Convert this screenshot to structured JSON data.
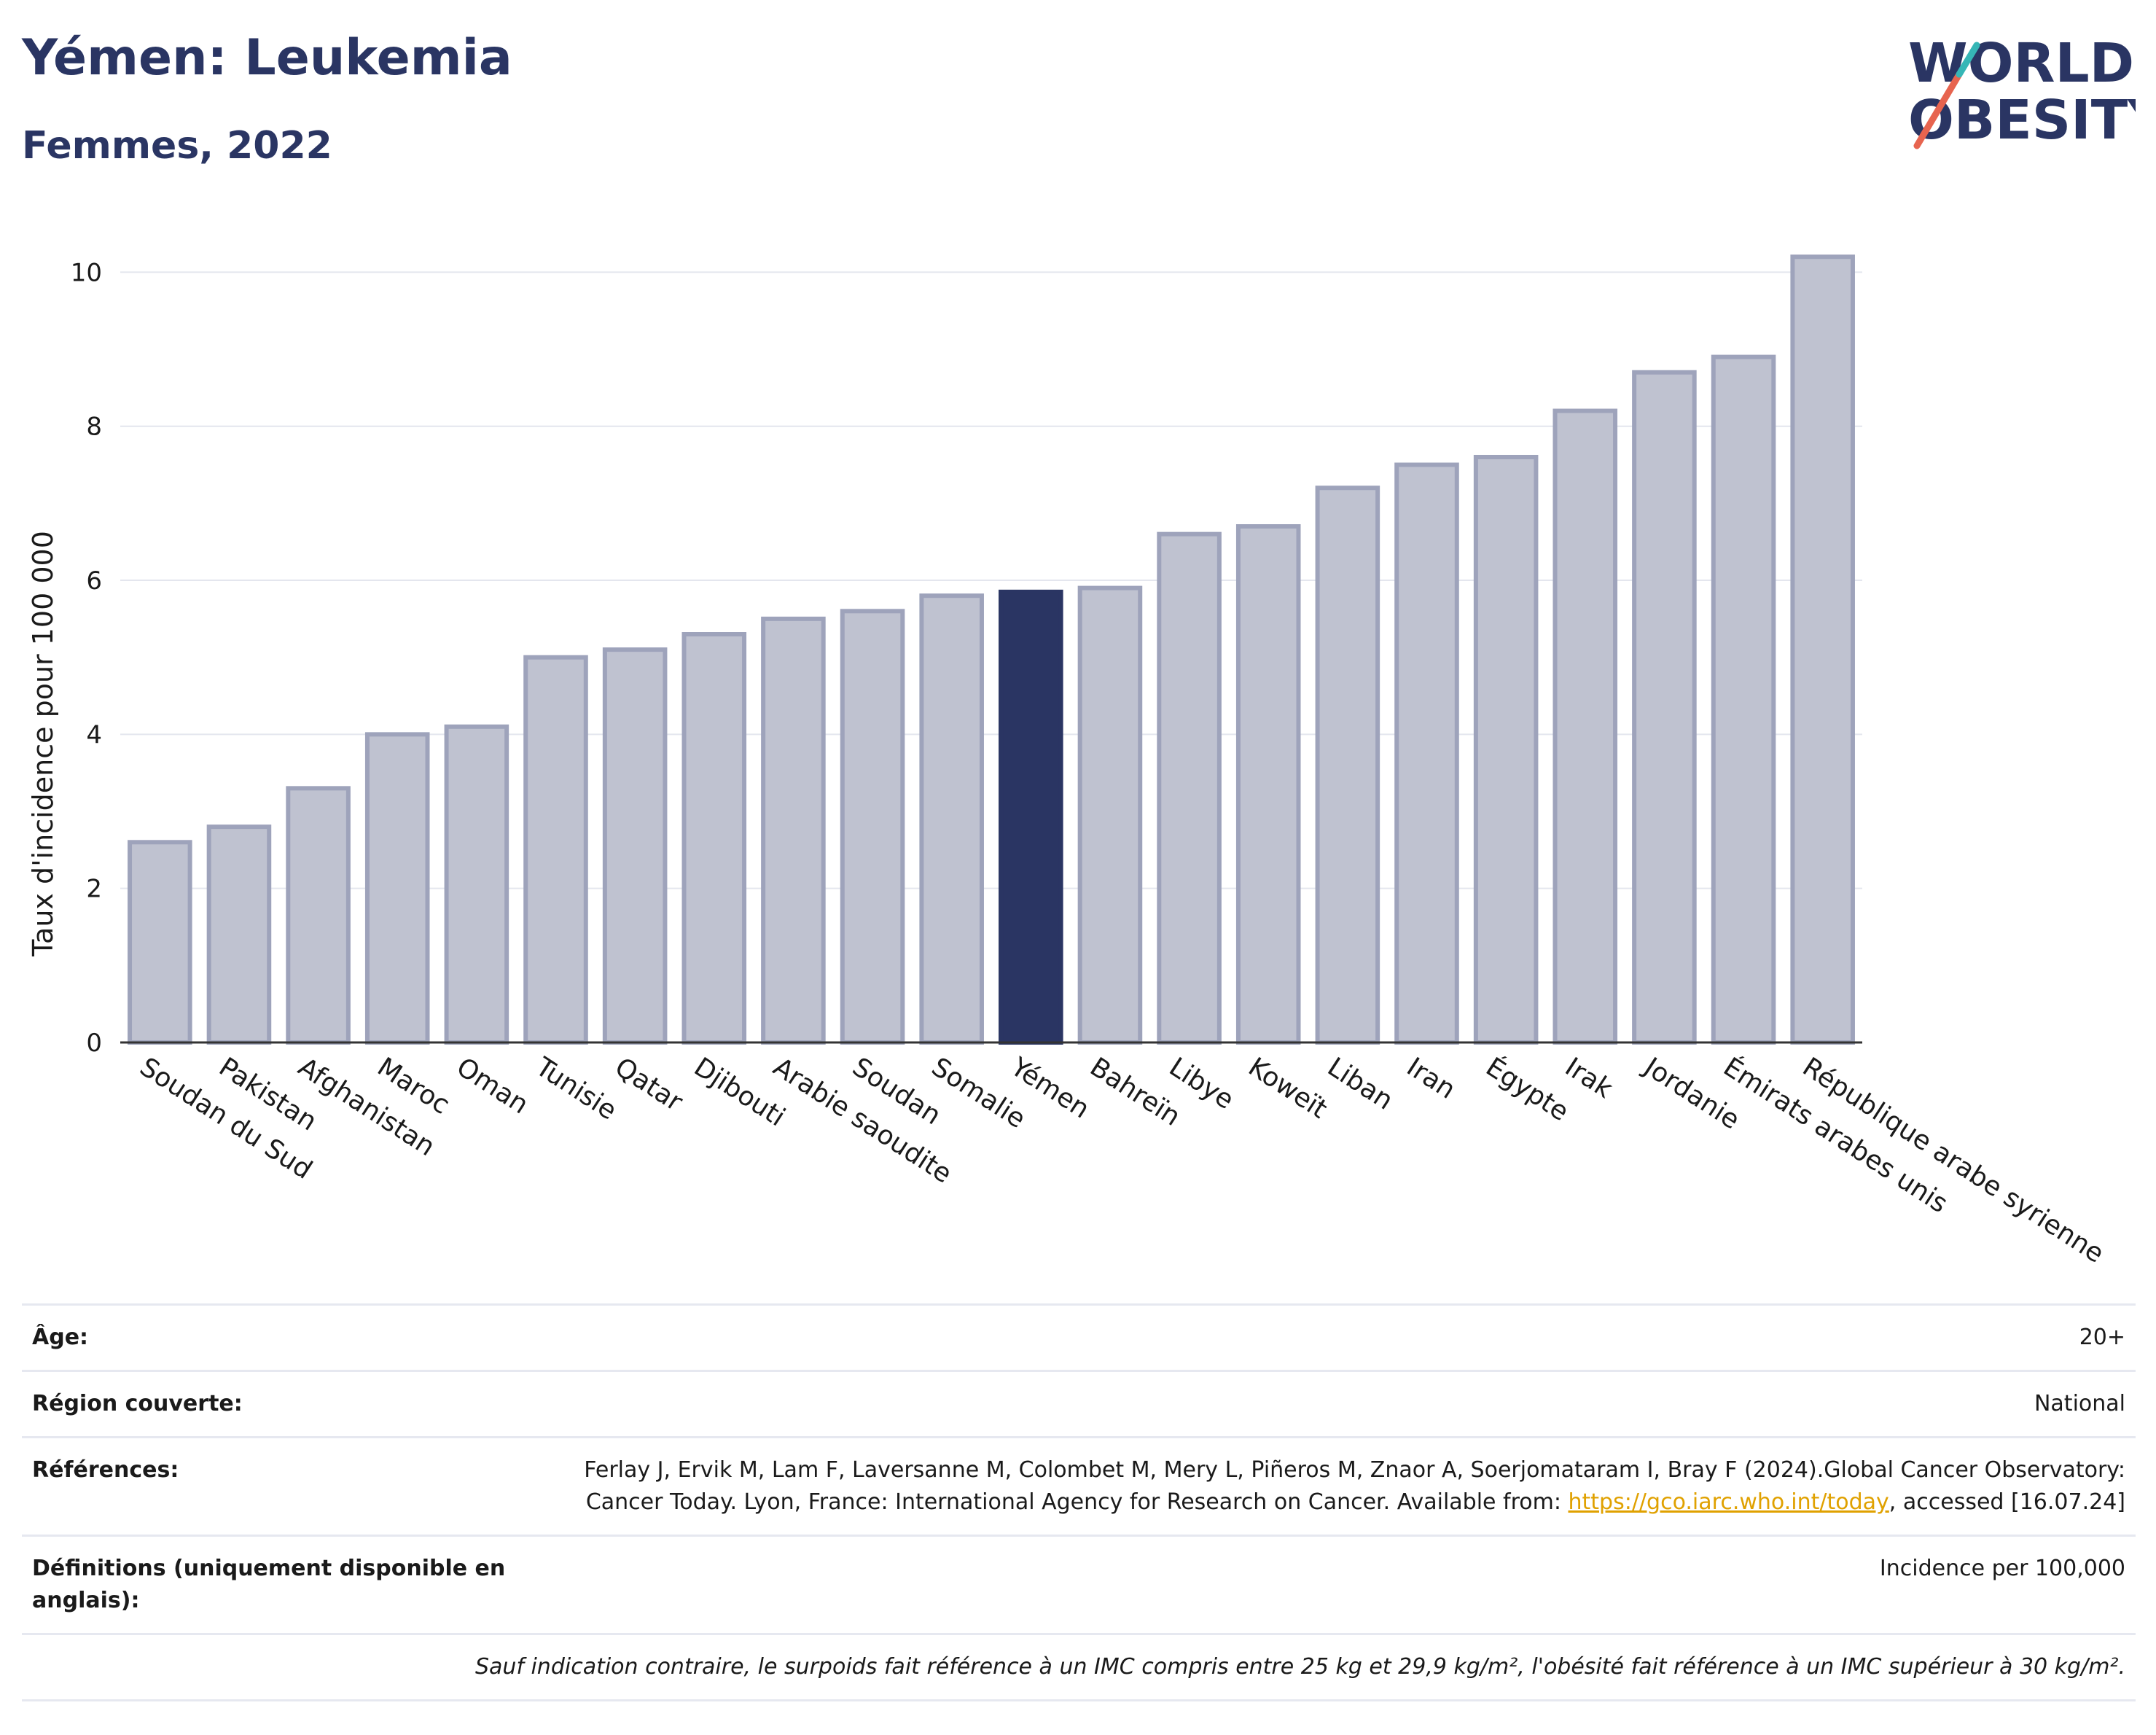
{
  "header": {
    "title": "Yémen: Leukemia",
    "subtitle": "Femmes, 2022"
  },
  "logo": {
    "line1": "WORLD",
    "line2": "OBESITY",
    "colors": [
      "#2a3563",
      "#e7644f",
      "#36b6b6"
    ]
  },
  "chart_data": {
    "type": "bar",
    "ylabel": "Taux d'incidence pour 100 000",
    "xlabel": "",
    "ylim": [
      0,
      10.6
    ],
    "yticks": [
      0,
      2,
      4,
      6,
      8,
      10
    ],
    "grid": true,
    "highlight": "Yémen",
    "colors": {
      "bar": "#bfc2d0",
      "bar_edge": "#9ea3bb",
      "highlight": "#2a3563"
    },
    "categories": [
      "Soudan du Sud",
      "Pakistan",
      "Afghanistan",
      "Maroc",
      "Oman",
      "Tunisie",
      "Qatar",
      "Djibouti",
      "Arabie saoudite",
      "Soudan",
      "Somalie",
      "Yémen",
      "Bahreïn",
      "Libye",
      "Koweït",
      "Liban",
      "Iran",
      "Égypte",
      "Irak",
      "Jordanie",
      "Émirats arabes unis",
      "République arabe syrienne"
    ],
    "values": [
      2.6,
      2.8,
      3.3,
      4.0,
      4.1,
      5.0,
      5.1,
      5.3,
      5.5,
      5.6,
      5.8,
      5.85,
      5.9,
      6.6,
      6.7,
      7.2,
      7.5,
      7.6,
      8.2,
      8.7,
      8.9,
      10.2
    ]
  },
  "info": {
    "age_label": "Âge:",
    "age_value": "20+",
    "region_label": "Région couverte:",
    "region_value": "National",
    "refs_label": "Références:",
    "refs_text1": "Ferlay J, Ervik M, Lam F, Laversanne M, Colombet M, Mery L, Piñeros M, Znaor A, Soerjomataram I, Bray F (2024).Global Cancer Observatory: Cancer Today. Lyon, France: International Agency for Research on Cancer. Available from: ",
    "refs_link": "https://gco.iarc.who.int/today",
    "refs_text2": ", accessed [16.07.24]",
    "defs_label": "Définitions (uniquement disponible en anglais):",
    "defs_value": "Incidence per 100,000",
    "note": "Sauf indication contraire, le surpoids fait référence à un IMC compris entre 25 kg et 29,9 kg/m², l'obésité fait référence à un IMC supérieur à 30 kg/m²."
  }
}
